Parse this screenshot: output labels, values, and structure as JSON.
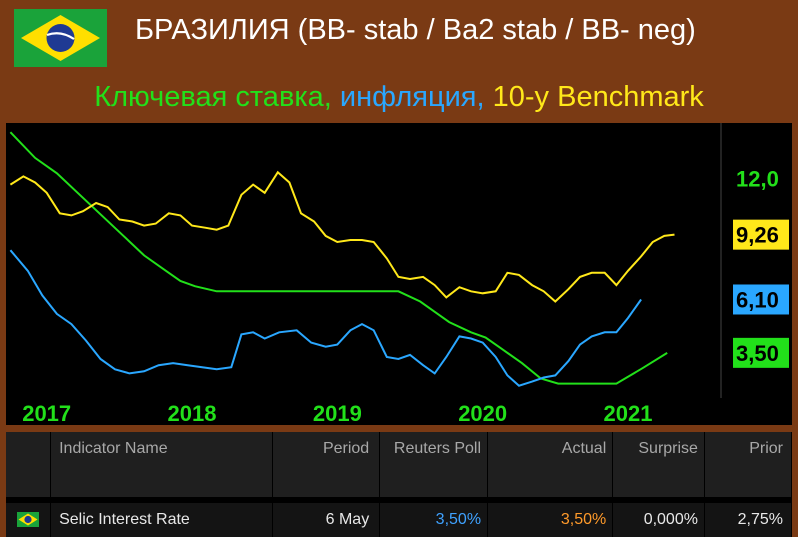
{
  "header": {
    "title": "БРАЗИЛИЯ (BB- stab / Ba2 stab / BB- neg)",
    "subtitle_part1": "Ключевая ставка, ",
    "subtitle_part2": "инфляция, ",
    "subtitle_part3": "10-y Benchmark"
  },
  "colors": {
    "background": "#7a3a14",
    "rate": "#22e01a",
    "inflation": "#2aa7ff",
    "benchmark": "#ffe81a",
    "chart_bg": "#000000"
  },
  "chart_data": {
    "type": "line",
    "x_ticks": [
      "2017",
      "2018",
      "2019",
      "2020",
      "2021"
    ],
    "ylim": [
      1.3,
      14.7
    ],
    "grid": false,
    "series": [
      {
        "color": "#22e01a",
        "points": [
          [
            2016.83,
            14.25
          ],
          [
            2017.0,
            13.0
          ],
          [
            2017.15,
            12.25
          ],
          [
            2017.3,
            11.25
          ],
          [
            2017.45,
            10.25
          ],
          [
            2017.6,
            9.25
          ],
          [
            2017.75,
            8.25
          ],
          [
            2017.9,
            7.5
          ],
          [
            2018.0,
            7.0
          ],
          [
            2018.1,
            6.75
          ],
          [
            2018.25,
            6.5
          ],
          [
            2018.5,
            6.5
          ],
          [
            2018.75,
            6.5
          ],
          [
            2019.0,
            6.5
          ],
          [
            2019.25,
            6.5
          ],
          [
            2019.5,
            6.5
          ],
          [
            2019.65,
            6.0
          ],
          [
            2019.75,
            5.5
          ],
          [
            2019.85,
            5.0
          ],
          [
            2020.0,
            4.5
          ],
          [
            2020.1,
            4.25
          ],
          [
            2020.2,
            3.75
          ],
          [
            2020.35,
            3.0
          ],
          [
            2020.48,
            2.25
          ],
          [
            2020.6,
            2.0
          ],
          [
            2020.8,
            2.0
          ],
          [
            2021.0,
            2.0
          ],
          [
            2021.18,
            2.75
          ],
          [
            2021.35,
            3.5
          ]
        ],
        "last_label": "3,50"
      },
      {
        "color": "#2aa7ff",
        "points": [
          [
            2016.83,
            8.5
          ],
          [
            2016.95,
            7.5
          ],
          [
            2017.05,
            6.3
          ],
          [
            2017.15,
            5.4
          ],
          [
            2017.25,
            4.9
          ],
          [
            2017.35,
            4.1
          ],
          [
            2017.45,
            3.2
          ],
          [
            2017.55,
            2.7
          ],
          [
            2017.65,
            2.5
          ],
          [
            2017.75,
            2.6
          ],
          [
            2017.85,
            2.9
          ],
          [
            2017.95,
            3.0
          ],
          [
            2018.05,
            2.9
          ],
          [
            2018.15,
            2.8
          ],
          [
            2018.25,
            2.7
          ],
          [
            2018.35,
            2.8
          ],
          [
            2018.42,
            4.4
          ],
          [
            2018.5,
            4.5
          ],
          [
            2018.58,
            4.2
          ],
          [
            2018.68,
            4.5
          ],
          [
            2018.8,
            4.6
          ],
          [
            2018.9,
            4.0
          ],
          [
            2019.0,
            3.8
          ],
          [
            2019.08,
            3.9
          ],
          [
            2019.17,
            4.6
          ],
          [
            2019.25,
            4.9
          ],
          [
            2019.33,
            4.6
          ],
          [
            2019.42,
            3.3
          ],
          [
            2019.5,
            3.2
          ],
          [
            2019.58,
            3.4
          ],
          [
            2019.67,
            2.9
          ],
          [
            2019.75,
            2.5
          ],
          [
            2019.83,
            3.3
          ],
          [
            2019.92,
            4.3
          ],
          [
            2020.0,
            4.2
          ],
          [
            2020.08,
            4.0
          ],
          [
            2020.17,
            3.3
          ],
          [
            2020.25,
            2.4
          ],
          [
            2020.33,
            1.9
          ],
          [
            2020.42,
            2.1
          ],
          [
            2020.5,
            2.3
          ],
          [
            2020.58,
            2.4
          ],
          [
            2020.67,
            3.1
          ],
          [
            2020.75,
            3.9
          ],
          [
            2020.83,
            4.3
          ],
          [
            2020.92,
            4.5
          ],
          [
            2021.0,
            4.5
          ],
          [
            2021.08,
            5.2
          ],
          [
            2021.17,
            6.1
          ]
        ],
        "last_label": "6,10"
      },
      {
        "color": "#ffe81a",
        "points": [
          [
            2016.83,
            11.7
          ],
          [
            2016.92,
            12.1
          ],
          [
            2017.0,
            11.8
          ],
          [
            2017.08,
            11.3
          ],
          [
            2017.17,
            10.3
          ],
          [
            2017.25,
            10.2
          ],
          [
            2017.33,
            10.4
          ],
          [
            2017.42,
            10.8
          ],
          [
            2017.5,
            10.6
          ],
          [
            2017.58,
            10.0
          ],
          [
            2017.67,
            9.9
          ],
          [
            2017.75,
            9.7
          ],
          [
            2017.83,
            9.8
          ],
          [
            2017.92,
            10.3
          ],
          [
            2018.0,
            10.2
          ],
          [
            2018.08,
            9.7
          ],
          [
            2018.17,
            9.6
          ],
          [
            2018.25,
            9.5
          ],
          [
            2018.33,
            9.7
          ],
          [
            2018.42,
            11.2
          ],
          [
            2018.5,
            11.7
          ],
          [
            2018.58,
            11.3
          ],
          [
            2018.67,
            12.3
          ],
          [
            2018.75,
            11.8
          ],
          [
            2018.83,
            10.3
          ],
          [
            2018.92,
            9.9
          ],
          [
            2019.0,
            9.2
          ],
          [
            2019.08,
            8.9
          ],
          [
            2019.17,
            9.0
          ],
          [
            2019.25,
            9.0
          ],
          [
            2019.33,
            8.9
          ],
          [
            2019.42,
            8.1
          ],
          [
            2019.5,
            7.2
          ],
          [
            2019.58,
            7.1
          ],
          [
            2019.67,
            7.2
          ],
          [
            2019.75,
            6.8
          ],
          [
            2019.83,
            6.2
          ],
          [
            2019.92,
            6.7
          ],
          [
            2020.0,
            6.5
          ],
          [
            2020.08,
            6.4
          ],
          [
            2020.17,
            6.5
          ],
          [
            2020.25,
            7.4
          ],
          [
            2020.33,
            7.3
          ],
          [
            2020.42,
            6.8
          ],
          [
            2020.5,
            6.5
          ],
          [
            2020.58,
            6.0
          ],
          [
            2020.67,
            6.6
          ],
          [
            2020.75,
            7.2
          ],
          [
            2020.83,
            7.4
          ],
          [
            2020.92,
            7.4
          ],
          [
            2021.0,
            6.8
          ],
          [
            2021.08,
            7.5
          ],
          [
            2021.17,
            8.2
          ],
          [
            2021.25,
            8.9
          ],
          [
            2021.33,
            9.2
          ],
          [
            2021.4,
            9.26
          ]
        ],
        "last_label": "9,26"
      }
    ],
    "axis_labels": [
      {
        "text": "12,0",
        "value": 12.0,
        "color": "#22e01a"
      },
      {
        "text": "9,26",
        "value": 9.26,
        "color": "#ffe81a",
        "boxed": true
      },
      {
        "text": "6,10",
        "value": 6.1,
        "color": "#2aa7ff",
        "boxed": true
      },
      {
        "text": "3,50",
        "value": 3.5,
        "color": "#22e01a",
        "boxed": true
      }
    ]
  },
  "table": {
    "headers": [
      "Indicator Name",
      "Period",
      "Reuters Poll",
      "Actual",
      "Surprise",
      "Prior"
    ],
    "row": {
      "name": "Selic Interest Rate",
      "period": "6 May",
      "poll": "3,50%",
      "actual": "3,50%",
      "surprise": "0,000%",
      "prior": "2,75%"
    }
  }
}
